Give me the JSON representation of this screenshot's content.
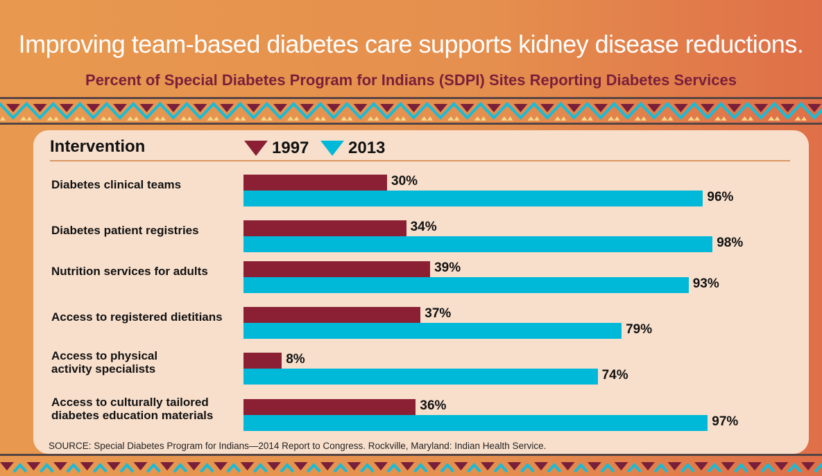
{
  "title": "Improving team-based diabetes care supports kidney disease reductions.",
  "subtitle": "Percent of Special Diabetes Program for Indians (SDPI) Sites Reporting Diabetes Services",
  "colors": {
    "s1997": "#8b2035",
    "s2013": "#00b9d9",
    "title": "#ffffff",
    "subtitle": "#7a1f3a"
  },
  "chart_data": {
    "type": "bar",
    "orientation": "horizontal",
    "category_header": "Intervention",
    "categories": [
      "Diabetes clinical teams",
      "Diabetes patient registries",
      "Nutrition services for adults",
      "Access to registered dietitians",
      "Access to physical activity specialists",
      "Access to culturally tailored diabetes education materials"
    ],
    "category_lines": [
      [
        "Diabetes clinical teams"
      ],
      [
        "Diabetes patient registries"
      ],
      [
        "Nutrition services for adults"
      ],
      [
        "Access to registered dietitians"
      ],
      [
        "Access to physical",
        "activity specialists"
      ],
      [
        "Access to culturally tailored",
        "diabetes education materials"
      ]
    ],
    "series": [
      {
        "name": "1997",
        "values": [
          30,
          34,
          39,
          37,
          8,
          36
        ],
        "labels": [
          "30%",
          "34%",
          "39%",
          "37%",
          "8%",
          "36%"
        ]
      },
      {
        "name": "2013",
        "values": [
          96,
          98,
          93,
          79,
          74,
          97
        ],
        "labels": [
          "96%",
          "98%",
          "93%",
          "79%",
          "74%",
          "97%"
        ]
      }
    ],
    "xlim": [
      0,
      100
    ],
    "unit": "%",
    "legend_position": "top",
    "grid": false
  },
  "source": "SOURCE: Special Diabetes Program for Indians—2014 Report to Congress. Rockville, Maryland: Indian Health Service."
}
